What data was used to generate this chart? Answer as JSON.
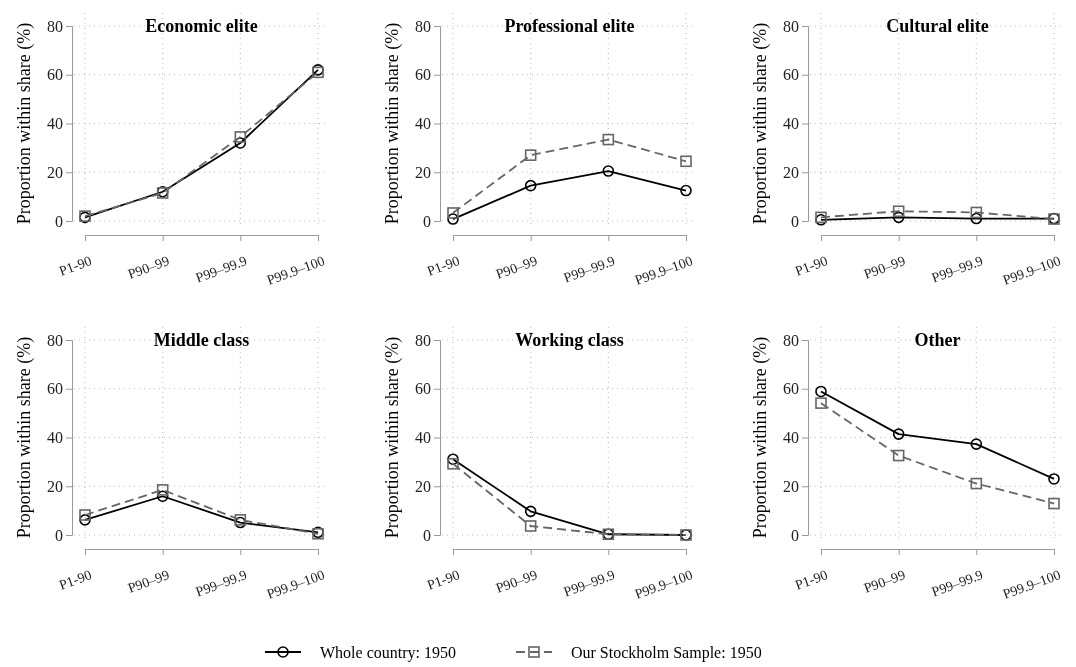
{
  "chart_data": [
    {
      "type": "line",
      "title": "Economic elite",
      "ylabel": "Proportion within share (%)",
      "categories": [
        "P1-90",
        "P90–99",
        "P99–99.9",
        "P99.9–100"
      ],
      "ylim": [
        0,
        80
      ],
      "yticks": [
        0,
        20,
        40,
        60,
        80
      ],
      "grid": true,
      "legend": "bottom",
      "series": [
        {
          "name": "Whole country: 1950",
          "color": "#000000",
          "marker": "circle",
          "line_style": "solid",
          "values": [
            1.5,
            12,
            32,
            62
          ]
        },
        {
          "name": "Our Stockholm Sample: 1950",
          "color": "#666666",
          "marker": "square",
          "line_style": "dashed",
          "values": [
            2,
            11.5,
            34.5,
            61
          ]
        }
      ]
    },
    {
      "type": "line",
      "title": "Professional elite",
      "ylabel": "Proportion within share (%)",
      "categories": [
        "P1-90",
        "P90–99",
        "P99–99.9",
        "P99.9–100"
      ],
      "ylim": [
        0,
        80
      ],
      "yticks": [
        0,
        20,
        40,
        60,
        80
      ],
      "grid": true,
      "series": [
        {
          "color": "#000000",
          "marker": "circle",
          "line_style": "solid",
          "values": [
            0.8,
            14.5,
            20.5,
            12.5
          ]
        },
        {
          "color": "#666666",
          "marker": "square",
          "line_style": "dashed",
          "values": [
            3.3,
            27,
            33.4,
            24.5
          ]
        }
      ]
    },
    {
      "type": "line",
      "title": "Cultural elite",
      "ylabel": "Proportion within share (%)",
      "categories": [
        "P1-90",
        "P90–99",
        "P99–99.9",
        "P99.9–100"
      ],
      "ylim": [
        0,
        80
      ],
      "yticks": [
        0,
        20,
        40,
        60,
        80
      ],
      "grid": true,
      "series": [
        {
          "color": "#000000",
          "marker": "circle",
          "line_style": "solid",
          "values": [
            0.5,
            1.5,
            1,
            1
          ]
        },
        {
          "color": "#666666",
          "marker": "square",
          "line_style": "dashed",
          "values": [
            1.5,
            4,
            3.5,
            0.8
          ]
        }
      ]
    },
    {
      "type": "line",
      "title": "Middle class",
      "ylabel": "Proportion within share (%)",
      "categories": [
        "P1-90",
        "P90–99",
        "P99–99.9",
        "P99.9–100"
      ],
      "ylim": [
        0,
        80
      ],
      "yticks": [
        0,
        20,
        40,
        60,
        80
      ],
      "grid": true,
      "series": [
        {
          "color": "#000000",
          "marker": "circle",
          "line_style": "solid",
          "values": [
            6.2,
            15.9,
            5.1,
            1.1
          ]
        },
        {
          "color": "#666666",
          "marker": "square",
          "line_style": "dashed",
          "values": [
            8.2,
            18.5,
            6.2,
            0.5
          ]
        }
      ]
    },
    {
      "type": "line",
      "title": "Working class",
      "ylabel": "Proportion within share (%)",
      "categories": [
        "P1-90",
        "P90–99",
        "P99–99.9",
        "P99.9–100"
      ],
      "ylim": [
        0,
        80
      ],
      "yticks": [
        0,
        20,
        40,
        60,
        80
      ],
      "grid": true,
      "series": [
        {
          "color": "#000000",
          "marker": "circle",
          "line_style": "solid",
          "values": [
            31.1,
            9.7,
            0.3,
            0
          ]
        },
        {
          "color": "#666666",
          "marker": "square",
          "line_style": "dashed",
          "values": [
            29.2,
            3.7,
            0.3,
            0
          ]
        }
      ]
    },
    {
      "type": "line",
      "title": "Other",
      "ylabel": "Proportion within share (%)",
      "categories": [
        "P1-90",
        "P90–99",
        "P99–99.9",
        "P99.9–100"
      ],
      "ylim": [
        0,
        80
      ],
      "yticks": [
        0,
        20,
        40,
        60,
        80
      ],
      "grid": true,
      "series": [
        {
          "color": "#000000",
          "marker": "circle",
          "line_style": "solid",
          "values": [
            58.9,
            41.4,
            37.3,
            23.0
          ]
        },
        {
          "color": "#666666",
          "marker": "square",
          "line_style": "dashed",
          "values": [
            54.1,
            32.6,
            21.1,
            12.9
          ]
        }
      ]
    }
  ]
}
